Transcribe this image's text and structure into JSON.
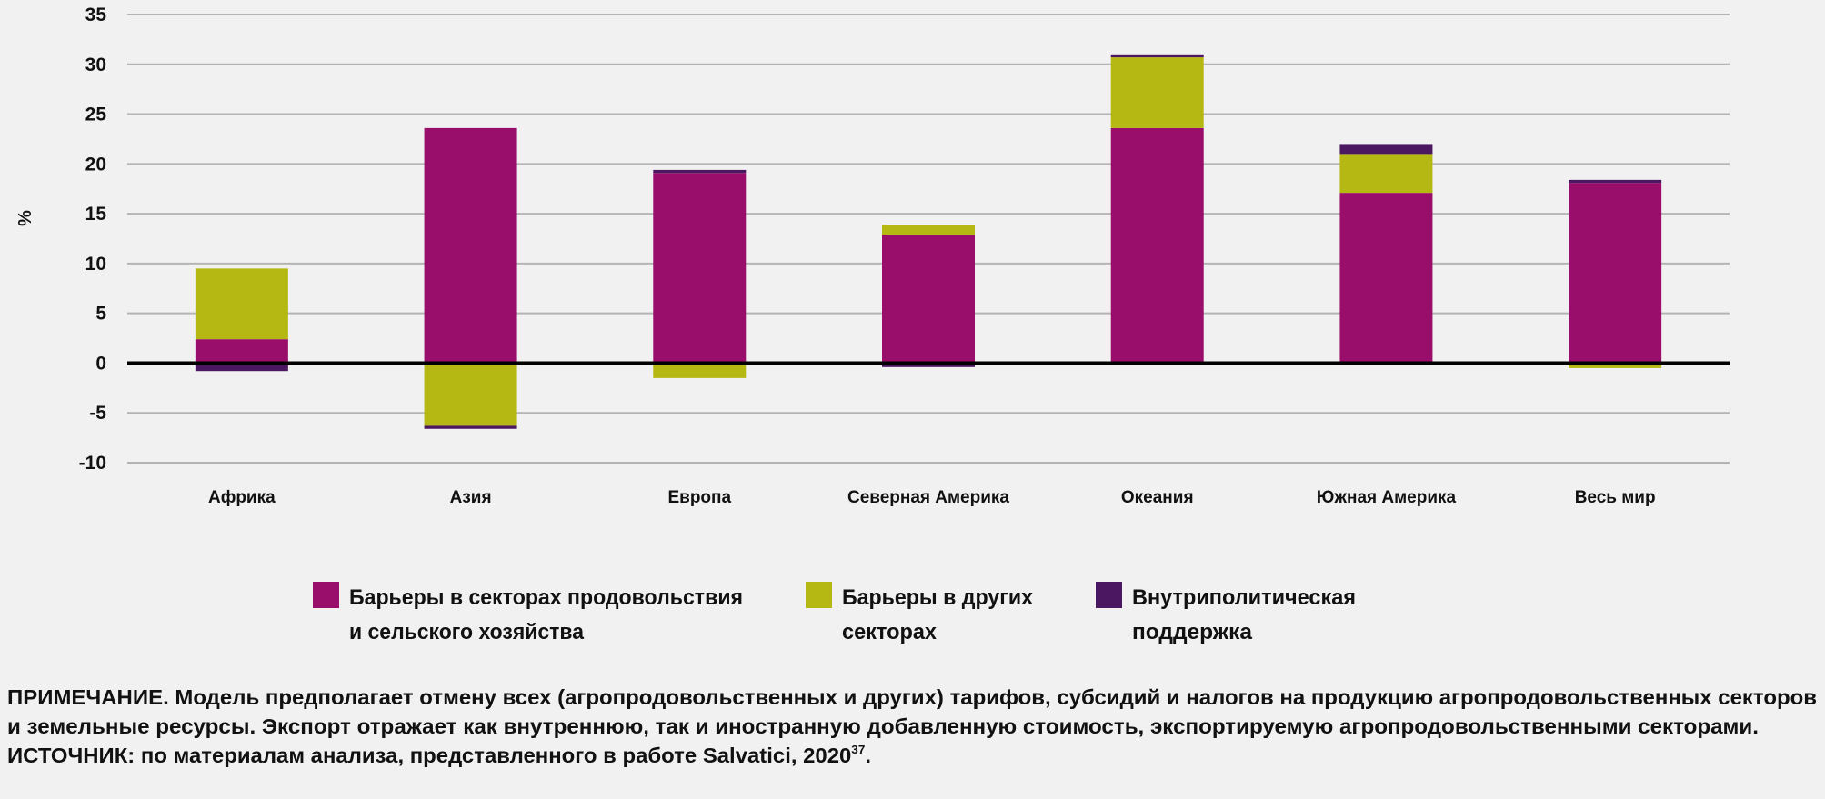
{
  "chart_data": {
    "type": "bar",
    "stacked": true,
    "title": "",
    "xlabel": "",
    "ylabel": "%",
    "ylim": [
      -10,
      35
    ],
    "yticks": [
      35,
      30,
      25,
      20,
      15,
      10,
      5,
      0,
      -5,
      -10
    ],
    "grid": true,
    "legend_position": "bottom",
    "categories": [
      "Африка",
      "Азия",
      "Европа",
      "Северная Америка",
      "Океания",
      "Южная Америка",
      "Весь мир"
    ],
    "series": [
      {
        "name": "Барьеры в секторах продовольствия и сельского хозяйства",
        "legend_lines": [
          "Барьеры в секторах продовольствия",
          "и сельского хозяйства"
        ],
        "color": "#9a0e6b",
        "values": [
          2.4,
          23.6,
          19.1,
          12.9,
          23.6,
          17.1,
          18.1
        ]
      },
      {
        "name": "Барьеры в других секторах",
        "legend_lines": [
          "Барьеры в других",
          "секторах"
        ],
        "color": "#b5b813",
        "values": [
          7.1,
          -6.3,
          -1.5,
          1.0,
          7.1,
          3.9,
          -0.5
        ]
      },
      {
        "name": "Внутриполитическая поддержка",
        "legend_lines": [
          "Внутриполитическая",
          "поддержка"
        ],
        "color": "#4a1760",
        "values": [
          -0.8,
          -0.3,
          0.3,
          -0.4,
          0.3,
          1.0,
          0.3
        ]
      }
    ]
  },
  "note": {
    "line1": "ПРИМЕЧАНИЕ. Модель предполагает отмену всех (агропродовольственных и других) тарифов, субсидий и налогов на продукцию агропродовольственных секторов",
    "line2": "и земельные ресурсы. Экспорт отражает как внутреннюю, так и иностранную добавленную стоимость, экспортируемую агропродовольственными секторами.",
    "line3": "ИСТОЧНИК: по материалам анализа, представленного в работе Salvatici, 2020",
    "line3_sup": "37",
    "line3_end": "."
  }
}
